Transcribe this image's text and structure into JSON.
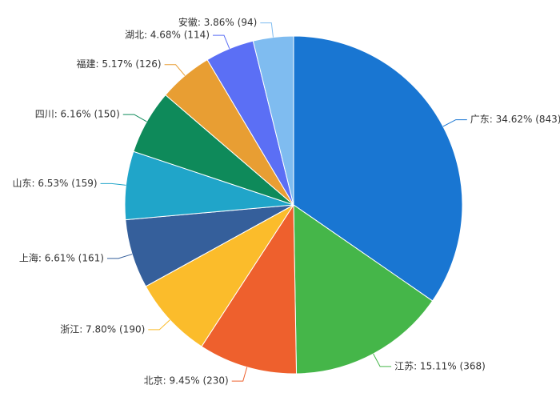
{
  "chart_data": {
    "type": "pie",
    "values": [
      843,
      368,
      230,
      190,
      161,
      159,
      150,
      126,
      114,
      94
    ],
    "value_labels": [
      "广东: 34.62% (843)",
      "江苏: 15.11% (368)",
      "北京: 9.45% (230)",
      "浙江: 7.80% (190)",
      "上海: 6.61% (161)",
      "山东: 6.53% (159)",
      "四川: 6.16% (150)",
      "福建: 5.17% (126)",
      "湖北: 4.68% (114)",
      "安徽: 3.86% (94)"
    ],
    "colors": [
      "#1976d2",
      "#45b649",
      "#ee602d",
      "#fbbc2b",
      "#355f9b",
      "#20a5c9",
      "#0e8a5a",
      "#e89e33",
      "#5b6ff5",
      "#7fbcf0"
    ]
  }
}
